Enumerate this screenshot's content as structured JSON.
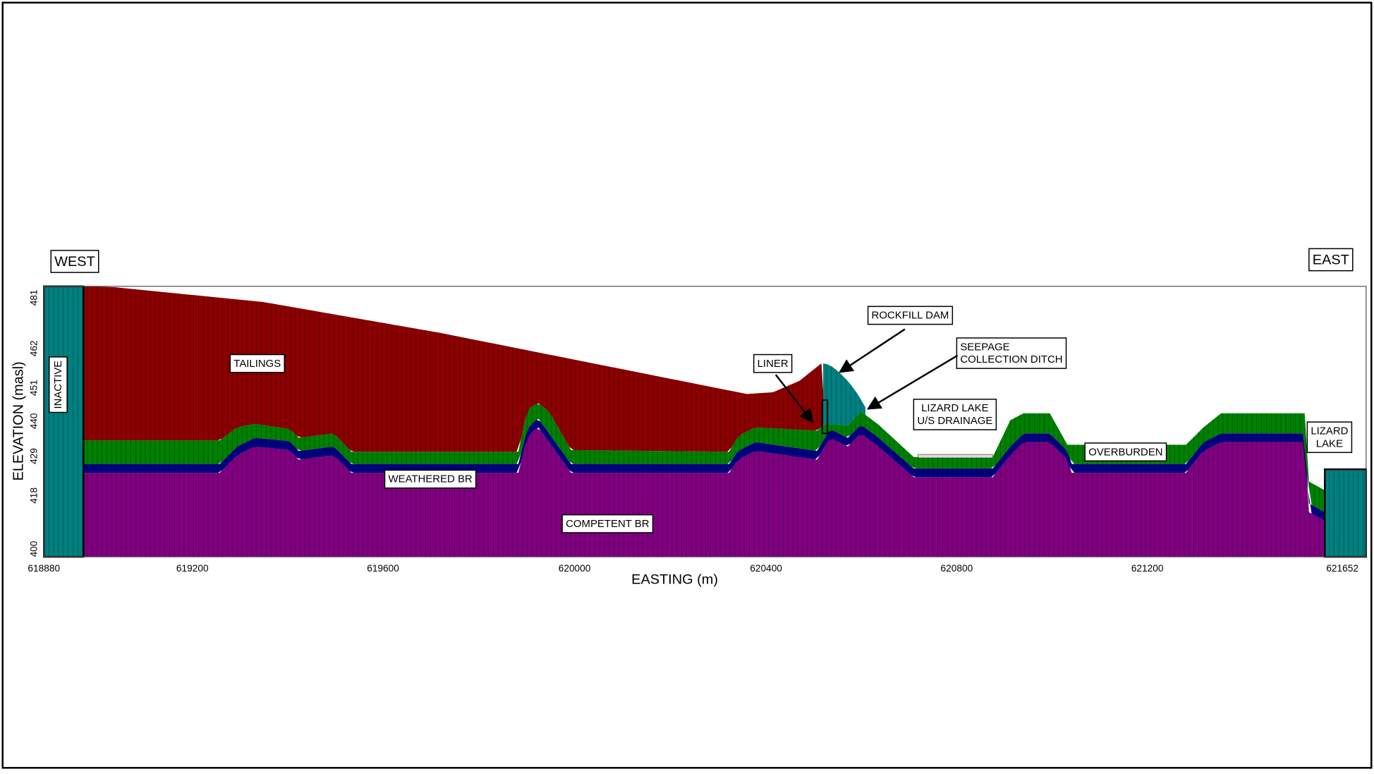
{
  "frame": {
    "west": "WEST",
    "east": "EAST"
  },
  "axes": {
    "x_label": "EASTING  (m)",
    "y_label": "ELEVATION  (masl)",
    "x_ticks": [
      "618880",
      "619200",
      "619600",
      "620000",
      "620400",
      "620800",
      "621200",
      "621652"
    ],
    "y_ticks": [
      "481",
      "462",
      "451",
      "440",
      "429",
      "418",
      "400"
    ]
  },
  "labels": {
    "inactive": "INACTIVE",
    "tailings": "TAILINGS",
    "liner": "LINER",
    "rockfill_dam": "ROCKFILL DAM",
    "seepage_ditch": [
      "SEEPAGE",
      "COLLECTION DITCH"
    ],
    "lizard_drainage": [
      "LIZARD LAKE",
      "U/S DRAINAGE"
    ],
    "overburden": "OVERBURDEN",
    "lizard_lake": [
      "LIZARD",
      "LAKE"
    ],
    "weathered_br": "WEATHERED BR",
    "competent_br": "COMPETENT BR"
  }
}
